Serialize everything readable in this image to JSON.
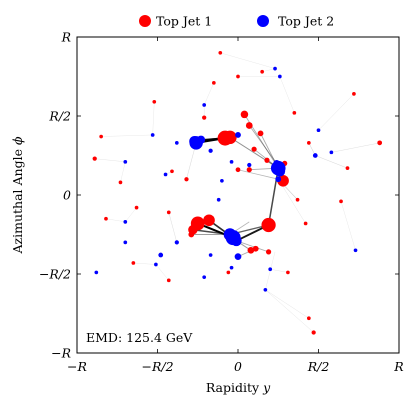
{
  "chart_data": {
    "type": "scatter",
    "title": "",
    "xlabel": "Rapidity y",
    "ylabel": "Azimuthal Angle ϕ",
    "xlim": [
      -1,
      1
    ],
    "ylim": [
      -1,
      1
    ],
    "x_ticks": [
      {
        "value": -1,
        "label": "−R"
      },
      {
        "value": -0.5,
        "label": "−R/2"
      },
      {
        "value": 0,
        "label": "0"
      },
      {
        "value": 0.5,
        "label": "R/2"
      },
      {
        "value": 1,
        "label": "R"
      }
    ],
    "y_ticks": [
      {
        "value": -1,
        "label": "−R"
      },
      {
        "value": -0.5,
        "label": "−R/2"
      },
      {
        "value": 0,
        "label": "0"
      },
      {
        "value": 0.5,
        "label": "R/2"
      },
      {
        "value": 1,
        "label": "R"
      }
    ],
    "legend": {
      "placement": "top-center"
    },
    "annotation": "EMD: 125.4 GeV",
    "colors": {
      "jet1": "#ff0000",
      "jet2": "#0000ff",
      "flow": "#000000"
    },
    "series": [
      {
        "name": "Top Jet 1",
        "color": "#ff0000",
        "points": [
          {
            "x": -0.08,
            "y": 0.36,
            "w": 1.0
          },
          {
            "x": -0.05,
            "y": 0.365,
            "w": 0.8
          },
          {
            "x": 0.19,
            "y": -0.19,
            "w": 0.9
          },
          {
            "x": 0.28,
            "y": 0.09,
            "w": 0.6
          },
          {
            "x": -0.25,
            "y": -0.18,
            "w": 0.85
          },
          {
            "x": -0.18,
            "y": -0.16,
            "w": 0.6
          },
          {
            "x": -0.28,
            "y": -0.22,
            "w": 0.4
          },
          {
            "x": -0.06,
            "y": -0.26,
            "w": 0.3
          },
          {
            "x": 0.04,
            "y": 0.51,
            "w": 0.25
          },
          {
            "x": 0.07,
            "y": 0.44,
            "w": 0.2
          },
          {
            "x": 0.14,
            "y": 0.39,
            "w": 0.15
          },
          {
            "x": 0.1,
            "y": 0.29,
            "w": 0.12
          },
          {
            "x": 0.07,
            "y": 0.16,
            "w": 0.12
          },
          {
            "x": 0.0,
            "y": 0.16,
            "w": 0.1
          },
          {
            "x": 0.18,
            "y": 0.22,
            "w": 0.12
          },
          {
            "x": 0.08,
            "y": -0.35,
            "w": 0.2
          },
          {
            "x": 0.11,
            "y": -0.34,
            "w": 0.15
          },
          {
            "x": 0.19,
            "y": -0.36,
            "w": 0.12
          },
          {
            "x": 0.29,
            "y": 0.2,
            "w": 0.12
          },
          {
            "x": -0.29,
            "y": -0.25,
            "w": 0.15
          },
          {
            "x": -0.21,
            "y": 0.49,
            "w": 0.08
          },
          {
            "x": -0.52,
            "y": 0.59,
            "w": 0.06
          },
          {
            "x": -0.32,
            "y": 0.1,
            "w": 0.08
          },
          {
            "x": -0.43,
            "y": -0.11,
            "w": 0.06
          },
          {
            "x": -0.41,
            "y": 0.15,
            "w": 0.06
          },
          {
            "x": -0.89,
            "y": 0.23,
            "w": 0.08
          },
          {
            "x": -0.85,
            "y": 0.37,
            "w": 0.06
          },
          {
            "x": -0.73,
            "y": 0.08,
            "w": 0.06
          },
          {
            "x": -0.63,
            "y": -0.08,
            "w": 0.06
          },
          {
            "x": -0.82,
            "y": -0.15,
            "w": 0.06
          },
          {
            "x": -0.65,
            "y": -0.43,
            "w": 0.06
          },
          {
            "x": 0.88,
            "y": 0.33,
            "w": 0.1
          },
          {
            "x": 0.68,
            "y": 0.17,
            "w": 0.06
          },
          {
            "x": 0.44,
            "y": 0.33,
            "w": 0.06
          },
          {
            "x": 0.72,
            "y": 0.64,
            "w": 0.06
          },
          {
            "x": 0.37,
            "y": -0.03,
            "w": 0.06
          },
          {
            "x": 0.42,
            "y": -0.18,
            "w": 0.06
          },
          {
            "x": 0.31,
            "y": -0.49,
            "w": 0.06
          },
          {
            "x": -0.43,
            "y": -0.54,
            "w": 0.06
          },
          {
            "x": -0.06,
            "y": -0.49,
            "w": 0.06
          },
          {
            "x": 0.44,
            "y": -0.78,
            "w": 0.06
          },
          {
            "x": 0.47,
            "y": -0.87,
            "w": 0.08
          },
          {
            "x": -0.11,
            "y": 0.9,
            "w": 0.06
          },
          {
            "x": -0.15,
            "y": 0.71,
            "w": 0.06
          },
          {
            "x": 0.0,
            "y": 0.75,
            "w": 0.06
          },
          {
            "x": 0.15,
            "y": 0.78,
            "w": 0.06
          },
          {
            "x": 0.64,
            "y": -0.04,
            "w": 0.06
          },
          {
            "x": 0.35,
            "y": 0.52,
            "w": 0.06
          }
        ]
      },
      {
        "name": "Top Jet 2",
        "color": "#0000ff",
        "points": [
          {
            "x": 0.25,
            "y": 0.17,
            "w": 0.95
          },
          {
            "x": 0.26,
            "y": 0.15,
            "w": 0.5
          },
          {
            "x": -0.03,
            "y": -0.27,
            "w": 1.0
          },
          {
            "x": -0.05,
            "y": -0.25,
            "w": 0.7
          },
          {
            "x": -0.01,
            "y": -0.29,
            "w": 0.5
          },
          {
            "x": -0.26,
            "y": 0.33,
            "w": 0.8
          },
          {
            "x": -0.27,
            "y": 0.34,
            "w": 0.5
          },
          {
            "x": -0.23,
            "y": 0.35,
            "w": 0.3
          },
          {
            "x": 0.0,
            "y": -0.39,
            "w": 0.2
          },
          {
            "x": 0.0,
            "y": 0.38,
            "w": 0.15
          },
          {
            "x": 0.24,
            "y": 0.2,
            "w": 0.2
          },
          {
            "x": 0.25,
            "y": 0.1,
            "w": 0.15
          },
          {
            "x": 0.48,
            "y": 0.25,
            "w": 0.1
          },
          {
            "x": 0.07,
            "y": 0.19,
            "w": 0.08
          },
          {
            "x": -0.04,
            "y": 0.21,
            "w": 0.06
          },
          {
            "x": -0.17,
            "y": 0.28,
            "w": 0.08
          },
          {
            "x": -0.48,
            "y": -0.38,
            "w": 0.1
          },
          {
            "x": -0.38,
            "y": -0.3,
            "w": 0.08
          },
          {
            "x": -0.51,
            "y": -0.44,
            "w": 0.06
          },
          {
            "x": -0.17,
            "y": -0.38,
            "w": 0.06
          },
          {
            "x": 0.26,
            "y": 0.75,
            "w": 0.06
          },
          {
            "x": 0.23,
            "y": 0.8,
            "w": 0.06
          },
          {
            "x": -0.21,
            "y": 0.57,
            "w": 0.06
          },
          {
            "x": -0.7,
            "y": 0.21,
            "w": 0.06
          },
          {
            "x": -0.7,
            "y": -0.17,
            "w": 0.06
          },
          {
            "x": -0.7,
            "y": -0.3,
            "w": 0.06
          },
          {
            "x": -0.88,
            "y": -0.49,
            "w": 0.06
          },
          {
            "x": -0.53,
            "y": 0.38,
            "w": 0.06
          },
          {
            "x": -0.21,
            "y": -0.52,
            "w": 0.06
          },
          {
            "x": 0.17,
            "y": -0.6,
            "w": 0.06
          },
          {
            "x": 0.2,
            "y": -0.47,
            "w": 0.06
          },
          {
            "x": 0.5,
            "y": 0.41,
            "w": 0.06
          },
          {
            "x": 0.73,
            "y": -0.35,
            "w": 0.06
          },
          {
            "x": -0.1,
            "y": 0.09,
            "w": 0.06
          },
          {
            "x": -0.38,
            "y": 0.33,
            "w": 0.06
          },
          {
            "x": 0.58,
            "y": 0.27,
            "w": 0.06
          },
          {
            "x": -0.45,
            "y": 0.13,
            "w": 0.06
          },
          {
            "x": -0.12,
            "y": -0.03,
            "w": 0.06
          },
          {
            "x": -0.04,
            "y": -0.46,
            "w": 0.06
          }
        ]
      }
    ],
    "flows": [
      {
        "x1": -0.25,
        "y1": -0.18,
        "x2": -0.03,
        "y2": -0.27,
        "w": 1.0
      },
      {
        "x1": -0.18,
        "y1": -0.16,
        "x2": -0.03,
        "y2": -0.27,
        "w": 0.8
      },
      {
        "x1": -0.28,
        "y1": -0.22,
        "x2": -0.05,
        "y2": -0.25,
        "w": 0.7
      },
      {
        "x1": -0.06,
        "y1": -0.26,
        "x2": -0.03,
        "y2": -0.27,
        "w": 0.5
      },
      {
        "x1": 0.19,
        "y1": -0.19,
        "x2": -0.01,
        "y2": -0.29,
        "w": 0.9
      },
      {
        "x1": 0.19,
        "y1": -0.19,
        "x2": 0.25,
        "y2": 0.17,
        "w": 0.7
      },
      {
        "x1": 0.19,
        "y1": -0.19,
        "x2": -0.05,
        "y2": -0.25,
        "w": 0.6
      },
      {
        "x1": 0.28,
        "y1": 0.09,
        "x2": 0.25,
        "y2": 0.17,
        "w": 0.9
      },
      {
        "x1": -0.08,
        "y1": 0.36,
        "x2": -0.26,
        "y2": 0.33,
        "w": 1.0
      },
      {
        "x1": -0.05,
        "y1": 0.365,
        "x2": -0.27,
        "y2": 0.34,
        "w": 0.9
      },
      {
        "x1": -0.08,
        "y1": 0.36,
        "x2": -0.23,
        "y2": 0.35,
        "w": 0.7
      },
      {
        "x1": -0.05,
        "y1": 0.365,
        "x2": 0.25,
        "y2": 0.17,
        "w": 0.4
      },
      {
        "x1": 0.04,
        "y1": 0.51,
        "x2": 0.25,
        "y2": 0.17,
        "w": 0.3
      },
      {
        "x1": 0.07,
        "y1": 0.44,
        "x2": 0.24,
        "y2": 0.2,
        "w": 0.3
      },
      {
        "x1": 0.14,
        "y1": 0.39,
        "x2": 0.26,
        "y2": 0.15,
        "w": 0.3
      },
      {
        "x1": 0.1,
        "y1": 0.29,
        "x2": 0.25,
        "y2": 0.17,
        "w": 0.3
      },
      {
        "x1": 0.07,
        "y1": 0.16,
        "x2": 0.25,
        "y2": 0.17,
        "w": 0.3
      },
      {
        "x1": 0.0,
        "y1": 0.16,
        "x2": 0.25,
        "y2": 0.1,
        "w": 0.25
      },
      {
        "x1": 0.18,
        "y1": 0.22,
        "x2": 0.25,
        "y2": 0.17,
        "w": 0.3
      },
      {
        "x1": 0.08,
        "y1": -0.35,
        "x2": -0.01,
        "y2": -0.29,
        "w": 0.35
      },
      {
        "x1": 0.11,
        "y1": -0.34,
        "x2": 0.0,
        "y2": -0.39,
        "w": 0.3
      },
      {
        "x1": 0.19,
        "y1": -0.36,
        "x2": -0.01,
        "y2": -0.29,
        "w": 0.3
      },
      {
        "x1": 0.29,
        "y1": 0.2,
        "x2": 0.25,
        "y2": 0.17,
        "w": 0.25
      },
      {
        "x1": -0.29,
        "y1": -0.25,
        "x2": -0.05,
        "y2": -0.25,
        "w": 0.35
      },
      {
        "x1": 0.07,
        "y1": -0.17,
        "x2": -0.05,
        "y2": -0.25,
        "w": 0.25
      },
      {
        "x1": 0.37,
        "y1": -0.03,
        "x2": 0.25,
        "y2": 0.1,
        "w": 0.15
      },
      {
        "x1": -0.32,
        "y1": 0.1,
        "x2": -0.26,
        "y2": 0.33,
        "w": 0.1
      },
      {
        "x1": 0.44,
        "y1": 0.33,
        "x2": 0.48,
        "y2": 0.25,
        "w": 0.12
      },
      {
        "x1": 0.68,
        "y1": 0.17,
        "x2": 0.48,
        "y2": 0.25,
        "w": 0.1
      },
      {
        "x1": 0.88,
        "y1": 0.33,
        "x2": 0.58,
        "y2": 0.27,
        "w": 0.08
      },
      {
        "x1": -0.43,
        "y1": -0.11,
        "x2": -0.38,
        "y2": -0.3,
        "w": 0.08
      },
      {
        "x1": -0.41,
        "y1": 0.15,
        "x2": -0.45,
        "y2": 0.13,
        "w": 0.06
      },
      {
        "x1": -0.89,
        "y1": 0.23,
        "x2": -0.7,
        "y2": 0.21,
        "w": 0.06
      },
      {
        "x1": -0.73,
        "y1": 0.08,
        "x2": -0.7,
        "y2": 0.21,
        "w": 0.05
      },
      {
        "x1": -0.63,
        "y1": -0.08,
        "x2": -0.7,
        "y2": -0.17,
        "w": 0.05
      },
      {
        "x1": -0.82,
        "y1": -0.15,
        "x2": -0.7,
        "y2": -0.17,
        "w": 0.05
      },
      {
        "x1": -0.65,
        "y1": -0.43,
        "x2": -0.51,
        "y2": -0.44,
        "w": 0.05
      },
      {
        "x1": -0.43,
        "y1": -0.54,
        "x2": -0.51,
        "y2": -0.44,
        "w": 0.05
      },
      {
        "x1": -0.06,
        "y1": -0.49,
        "x2": -0.04,
        "y2": -0.46,
        "w": 0.06
      },
      {
        "x1": 0.44,
        "y1": -0.78,
        "x2": 0.17,
        "y2": -0.6,
        "w": 0.06
      },
      {
        "x1": 0.47,
        "y1": -0.87,
        "x2": 0.17,
        "y2": -0.6,
        "w": 0.06
      },
      {
        "x1": 0.31,
        "y1": -0.49,
        "x2": 0.2,
        "y2": -0.47,
        "w": 0.06
      },
      {
        "x1": 0.42,
        "y1": -0.18,
        "x2": 0.25,
        "y2": 0.1,
        "w": 0.06
      },
      {
        "x1": 0.72,
        "y1": 0.64,
        "x2": 0.5,
        "y2": 0.41,
        "w": 0.06
      },
      {
        "x1": 0.64,
        "y1": -0.04,
        "x2": 0.73,
        "y2": -0.35,
        "w": 0.05
      },
      {
        "x1": 0.35,
        "y1": 0.52,
        "x2": 0.26,
        "y2": 0.75,
        "w": 0.05
      },
      {
        "x1": -0.11,
        "y1": 0.9,
        "x2": 0.23,
        "y2": 0.8,
        "w": 0.05
      },
      {
        "x1": -0.15,
        "y1": 0.71,
        "x2": -0.21,
        "y2": 0.57,
        "w": 0.05
      },
      {
        "x1": 0.0,
        "y1": 0.75,
        "x2": 0.26,
        "y2": 0.75,
        "w": 0.05
      },
      {
        "x1": 0.15,
        "y1": 0.78,
        "x2": 0.23,
        "y2": 0.8,
        "w": 0.05
      },
      {
        "x1": -0.21,
        "y1": 0.49,
        "x2": -0.21,
        "y2": 0.57,
        "w": 0.06
      },
      {
        "x1": -0.52,
        "y1": 0.59,
        "x2": -0.53,
        "y2": 0.38,
        "w": 0.05
      },
      {
        "x1": -0.85,
        "y1": 0.37,
        "x2": -0.53,
        "y2": 0.38,
        "w": 0.05
      },
      {
        "x1": 0.23,
        "y1": -0.36,
        "x2": 0.17,
        "y2": -0.6,
        "w": 0.05
      }
    ]
  }
}
